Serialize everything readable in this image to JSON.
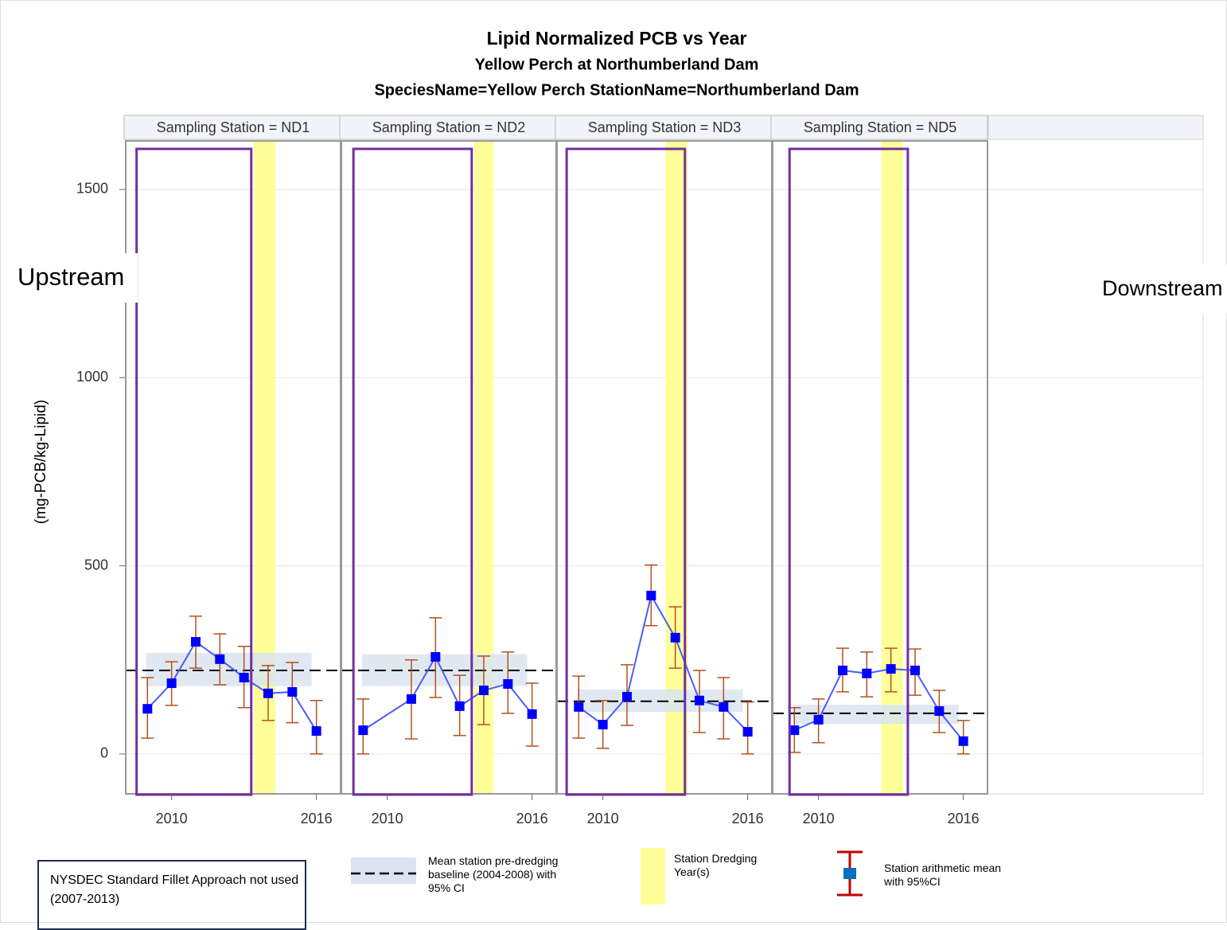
{
  "chart_data": {
    "type": "line",
    "title": "Lipid Normalized PCB vs Year",
    "subtitle": "Yellow Perch at Northumberland Dam",
    "by_line": "SpeciesName=Yellow Perch StationName=Northumberland Dam",
    "y_label": "(mg-PCB/kg-Lipid)",
    "ylim": [
      -106,
      1629
    ],
    "yticks": [
      0,
      500,
      1000,
      1500
    ],
    "xlim": [
      2008.1,
      2017.0
    ],
    "xticks": [
      2010,
      2016
    ],
    "grid": true,
    "marker_color": "#0000ff",
    "line_color": "#4b5cff",
    "error_color": "#b5501e",
    "band_color": "#dbe4f0",
    "dredging_color": "#ffff99",
    "box_color": "#7030a0",
    "panels": [
      {
        "label": "Sampling Station = ND1",
        "x": [
          2009,
          2010,
          2011,
          2012,
          2013,
          2014,
          2015,
          2016
        ],
        "values": [
          120,
          188,
          298,
          252,
          203,
          161,
          165,
          61
        ],
        "ci_lower": [
          42,
          129,
          228,
          184,
          123,
          89,
          83,
          0
        ],
        "ci_upper": [
          203,
          245,
          366,
          319,
          286,
          235,
          243,
          142
        ],
        "baseline": 222,
        "baseline_band": [
          180,
          269
        ],
        "dredging": [
          2013.4,
          2014.3
        ],
        "fillet_box": [
          2008.55,
          2013.3
        ]
      },
      {
        "label": "Sampling Station = ND2",
        "x": [
          2009,
          2011,
          2012,
          2013,
          2014,
          2015,
          2016
        ],
        "values": [
          63,
          146,
          258,
          127,
          169,
          186,
          106
        ],
        "ci_lower": [
          0,
          40,
          150,
          49,
          78,
          108,
          21
        ],
        "ci_upper": [
          146,
          250,
          362,
          209,
          260,
          271,
          188
        ],
        "baseline": 222,
        "baseline_band": [
          180,
          265
        ],
        "dredging": [
          2013.6,
          2014.4
        ],
        "fillet_box": [
          2008.6,
          2013.5
        ]
      },
      {
        "label": "Sampling Station = ND3",
        "x": [
          2009,
          2010,
          2011,
          2012,
          2013,
          2014,
          2015,
          2016
        ],
        "values": [
          125,
          78,
          152,
          421,
          309,
          142,
          125,
          59
        ],
        "ci_lower": [
          42,
          15,
          76,
          341,
          228,
          57,
          40,
          0
        ],
        "ci_upper": [
          207,
          142,
          237,
          502,
          391,
          222,
          203,
          138
        ],
        "baseline": 140,
        "baseline_band": [
          112,
          171
        ],
        "dredging": [
          2012.6,
          2013.5
        ],
        "fillet_box": [
          2008.5,
          2013.4
        ]
      },
      {
        "label": "Sampling Station = ND5",
        "x": [
          2009,
          2010,
          2011,
          2012,
          2013,
          2014,
          2015,
          2016
        ],
        "values": [
          63,
          91,
          222,
          214,
          226,
          222,
          114,
          34
        ],
        "ci_lower": [
          4,
          30,
          165,
          152,
          165,
          156,
          57,
          0
        ],
        "ci_upper": [
          123,
          146,
          281,
          271,
          281,
          279,
          169,
          89
        ],
        "baseline": 108,
        "baseline_band": [
          80,
          131
        ],
        "dredging": [
          2012.6,
          2013.5
        ],
        "fillet_box": [
          2008.8,
          2013.7
        ]
      }
    ],
    "upstream_label": "Upstream",
    "downstream_label": "Downstream",
    "legend": {
      "baseline": "Mean station pre-dredging baseline (2004-2008) with 95% CI",
      "dredging": "Station Dredging Year(s)",
      "mean": "Station arithmetic mean with 95%CI"
    },
    "note": "NYSDEC Standard Fillet Approach not used (2007-2013)"
  }
}
